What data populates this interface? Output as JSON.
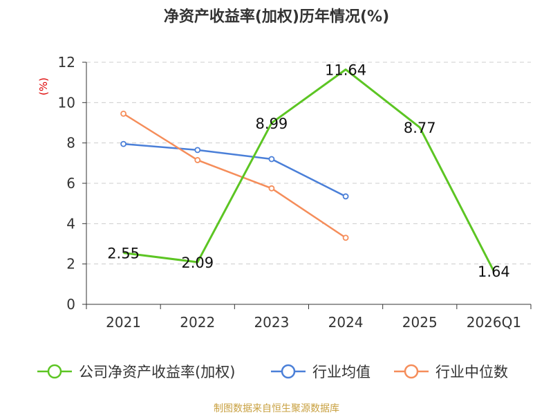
{
  "chart_data": {
    "type": "line",
    "title": "净资产收益率(加权)历年情况(%)",
    "ylabel": "(%)",
    "xlabel": "",
    "categories": [
      "2021",
      "2022",
      "2023",
      "2024",
      "2025",
      "2026Q1"
    ],
    "ylim": [
      0,
      12
    ],
    "yticks": [
      0,
      2,
      4,
      6,
      8,
      10,
      12
    ],
    "grid": true,
    "legend_position": "bottom",
    "series": [
      {
        "name": "公司净资产收益率(加权)",
        "color": "#5cc523",
        "values": [
          2.55,
          2.09,
          8.99,
          11.64,
          8.77,
          1.64
        ],
        "labels": [
          "2.55",
          "2.09",
          "8.99",
          "11.64",
          "8.77",
          "1.64"
        ]
      },
      {
        "name": "行业均值",
        "color": "#4a7fd8",
        "values": [
          7.95,
          7.65,
          7.2,
          5.35,
          null,
          null
        ]
      },
      {
        "name": "行业中位数",
        "color": "#f58d5a",
        "values": [
          9.45,
          7.15,
          5.75,
          3.3,
          null,
          null
        ]
      }
    ]
  },
  "source": "制图数据来自恒生聚源数据库"
}
